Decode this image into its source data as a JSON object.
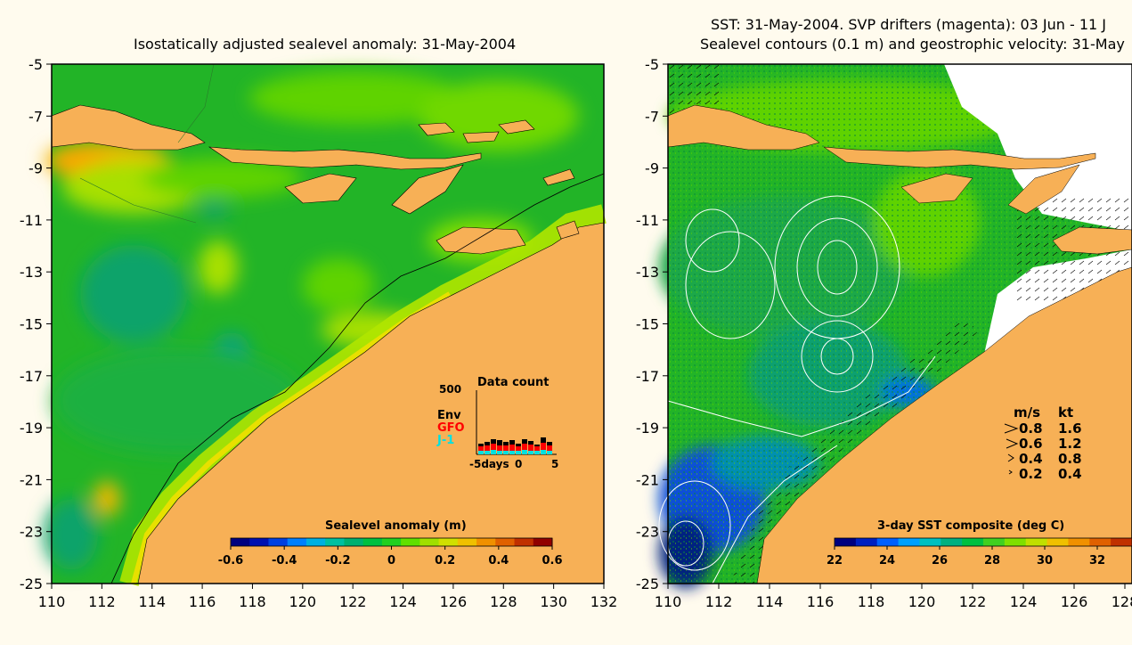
{
  "left": {
    "title": "Isostatically adjusted sealevel anomaly: 31-May-2004",
    "colorbar": {
      "title": "Sealevel anomaly (m)",
      "ticks": [
        "-0.6",
        "-0.4",
        "-0.2",
        "0",
        "0.2",
        "0.4",
        "0.6"
      ],
      "colors": [
        "#00007f",
        "#0010b0",
        "#0040e0",
        "#0080ff",
        "#00b0e0",
        "#00c0a0",
        "#00b070",
        "#00c040",
        "#20d020",
        "#60e000",
        "#a0e000",
        "#d0e000",
        "#f0c000",
        "#f09000",
        "#e06000",
        "#c03000",
        "#900000"
      ]
    },
    "datacount": {
      "title": "Data count",
      "ymax": "500",
      "legend": [
        {
          "label": "Env",
          "color": "#000000"
        },
        {
          "label": "GFO",
          "color": "#ff0000"
        },
        {
          "label": "J-1",
          "color": "#00e0e0"
        }
      ],
      "xlabel_left": "-5days",
      "xlabel_mid": "0",
      "xlabel_right": "5"
    }
  },
  "right": {
    "title_line1": "SST: 31-May-2004. SVP drifters (magenta): 03 Jun - 11 J",
    "title_line2": "Sealevel contours (0.1 m) and geostrophic velocity: 31-May",
    "colorbar": {
      "title": "3-day SST composite (deg C)",
      "ticks": [
        "22",
        "24",
        "26",
        "28",
        "30",
        "32"
      ],
      "colors": [
        "#00007f",
        "#0020c0",
        "#0060ff",
        "#00a0ff",
        "#00c0c0",
        "#00b080",
        "#00c040",
        "#40d020",
        "#80e000",
        "#c0e000",
        "#f0c000",
        "#f09000",
        "#e06000",
        "#c03000"
      ]
    },
    "velocity_legend": {
      "header": [
        "m/s",
        "kt"
      ],
      "rows": [
        [
          "0.8",
          "1.6"
        ],
        [
          "0.6",
          "1.2"
        ],
        [
          "0.4",
          "0.8"
        ],
        [
          "0.2",
          "0.4"
        ]
      ]
    }
  },
  "axes": {
    "y_ticks": [
      "-5",
      "-7",
      "-9",
      "-11",
      "-13",
      "-15",
      "-17",
      "-19",
      "-21",
      "-23",
      "-25"
    ],
    "x_ticks_left": [
      "110",
      "112",
      "114",
      "116",
      "118",
      "120",
      "122",
      "124",
      "126",
      "128",
      "130",
      "132"
    ],
    "x_ticks_right": [
      "110",
      "112",
      "114",
      "116",
      "118",
      "120",
      "122",
      "124",
      "126",
      "128"
    ]
  },
  "colors": {
    "land": "#f7b056",
    "sea_base": "#22b427",
    "sea_light": "#5fd300",
    "sea_yellow": "#b0e600",
    "sst_blue": "#0a50d8"
  }
}
